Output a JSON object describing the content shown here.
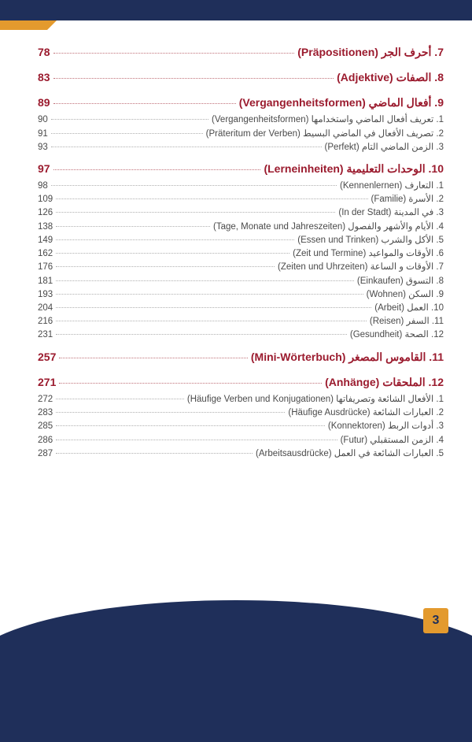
{
  "page_number": "3",
  "colors": {
    "header_border": "#1f2f5a",
    "accent": "#e39a2e",
    "chapter_text": "#9b1b2e",
    "sub_text": "#4a4a4a",
    "dots": "#b0b0b0"
  },
  "toc": [
    {
      "type": "chapter",
      "title": "7.  أحرف الجر (Präpositionen)",
      "page": "78"
    },
    {
      "type": "chapter",
      "title": "8.  الصفات (Adjektive)",
      "page": "83"
    },
    {
      "type": "chapter",
      "title": "9.  أفعال الماضي (Vergangenheitsformen)",
      "page": "89"
    },
    {
      "type": "sub",
      "title": "1.  تعريف أفعال الماضي واستخدامها (Vergangenheitsformen)",
      "page": "90"
    },
    {
      "type": "sub",
      "title": "2.  تصريف الأفعال في الماضي البسيط (Präteritum der Verben)",
      "page": "91"
    },
    {
      "type": "sub",
      "title": "3.  الزمن الماضي التام (Perfekt)",
      "page": "93"
    },
    {
      "type": "chapter",
      "title": "10.  الوحدات التعليمية (Lerneinheiten)",
      "page": "97"
    },
    {
      "type": "sub",
      "title": "1.  التعارف (Kennenlernen)",
      "page": "98"
    },
    {
      "type": "sub",
      "title": "2.  الأسرة (Familie)",
      "page": "109"
    },
    {
      "type": "sub",
      "title": "3.  في المدينة (In der Stadt)",
      "page": "126"
    },
    {
      "type": "sub",
      "title": "4.  الأيام والأشهر والفصول (Tage, Monate und Jahreszeiten)",
      "page": "138"
    },
    {
      "type": "sub",
      "title": "5.  الأكل والشرب (Essen und Trinken)",
      "page": "149"
    },
    {
      "type": "sub",
      "title": "6.  الأوقات والمواعيد (Zeit und Termine)",
      "page": "162"
    },
    {
      "type": "sub",
      "title": "7.  الأوقات و الساعة (Zeiten und Uhrzeiten)",
      "page": "176"
    },
    {
      "type": "sub",
      "title": "8.  التسوق (Einkaufen)",
      "page": "181"
    },
    {
      "type": "sub",
      "title": "9.  السكن (Wohnen)",
      "page": "193"
    },
    {
      "type": "sub",
      "title": "10.  العمل (Arbeit)",
      "page": "204"
    },
    {
      "type": "sub",
      "title": "11.  السفر (Reisen)",
      "page": "216"
    },
    {
      "type": "sub",
      "title": "12.  الصحة (Gesundheit)",
      "page": "231"
    },
    {
      "type": "chapter",
      "title": "11.  القاموس المصغر (Mini-Wörterbuch)",
      "page": "257"
    },
    {
      "type": "chapter",
      "title": "12.  الملحقات (Anhänge)",
      "page": "271"
    },
    {
      "type": "sub",
      "title": "1.  الأفعال الشائعة وتصريفاتها (Häufige Verben und Konjugationen)",
      "page": "272"
    },
    {
      "type": "sub",
      "title": "2.  العبارات الشائعة (Häufige Ausdrücke)",
      "page": "283"
    },
    {
      "type": "sub",
      "title": "3.  أدوات الربط (Konnektoren)",
      "page": "285"
    },
    {
      "type": "sub",
      "title": "4.  الزمن المستقبلي (Futur)",
      "page": "286"
    },
    {
      "type": "sub",
      "title": "5.  العبارات الشائعة في العمل (Arbeitsausdrücke)",
      "page": "287"
    }
  ]
}
